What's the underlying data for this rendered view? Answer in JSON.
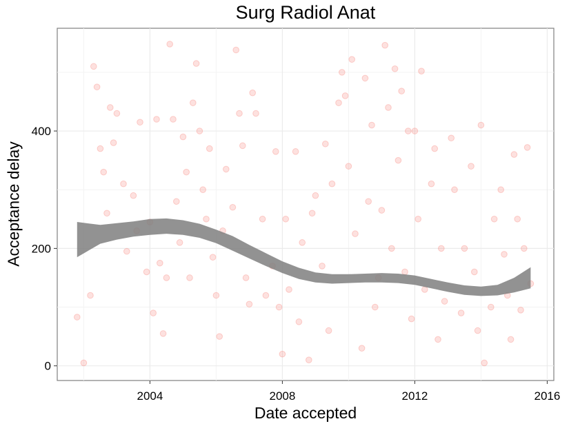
{
  "chart_data": {
    "type": "scatter",
    "title": "Surg Radiol Anat",
    "xlabel": "Date accepted",
    "ylabel": "Acceptance delay",
    "x_unit": "year",
    "xlim": [
      2001.2,
      2016.2
    ],
    "ylim": [
      -25,
      575
    ],
    "x_ticks": [
      2004,
      2008,
      2012,
      2016
    ],
    "x_tick_labels": [
      "2004",
      "2008",
      "2012",
      "2016"
    ],
    "y_ticks": [
      0,
      200,
      400
    ],
    "y_tick_labels": [
      "0",
      "200",
      "400"
    ],
    "grid": true,
    "legend": "none",
    "point_color": "#F8766D",
    "point_opacity": 0.22,
    "smooth_color": "#7f7f7f",
    "points": [
      [
        2001.8,
        83
      ],
      [
        2002.0,
        5
      ],
      [
        2002.2,
        120
      ],
      [
        2002.3,
        510
      ],
      [
        2002.4,
        475
      ],
      [
        2002.5,
        370
      ],
      [
        2002.6,
        330
      ],
      [
        2002.7,
        260
      ],
      [
        2002.8,
        440
      ],
      [
        2002.9,
        380
      ],
      [
        2003.0,
        430
      ],
      [
        2003.2,
        310
      ],
      [
        2003.3,
        195
      ],
      [
        2003.5,
        290
      ],
      [
        2003.6,
        230
      ],
      [
        2003.7,
        415
      ],
      [
        2003.9,
        160
      ],
      [
        2004.0,
        245
      ],
      [
        2004.1,
        90
      ],
      [
        2004.2,
        420
      ],
      [
        2004.3,
        175
      ],
      [
        2004.4,
        55
      ],
      [
        2004.5,
        150
      ],
      [
        2004.6,
        548
      ],
      [
        2004.7,
        420
      ],
      [
        2004.8,
        280
      ],
      [
        2004.9,
        210
      ],
      [
        2005.0,
        390
      ],
      [
        2005.1,
        330
      ],
      [
        2005.2,
        150
      ],
      [
        2005.3,
        448
      ],
      [
        2005.4,
        515
      ],
      [
        2005.5,
        400
      ],
      [
        2005.6,
        300
      ],
      [
        2005.7,
        250
      ],
      [
        2005.8,
        370
      ],
      [
        2005.9,
        185
      ],
      [
        2006.0,
        120
      ],
      [
        2006.1,
        50
      ],
      [
        2006.2,
        230
      ],
      [
        2006.3,
        335
      ],
      [
        2006.5,
        270
      ],
      [
        2006.6,
        538
      ],
      [
        2006.7,
        430
      ],
      [
        2006.8,
        375
      ],
      [
        2006.9,
        150
      ],
      [
        2007.0,
        105
      ],
      [
        2007.1,
        465
      ],
      [
        2007.2,
        430
      ],
      [
        2007.4,
        250
      ],
      [
        2007.5,
        120
      ],
      [
        2007.7,
        170
      ],
      [
        2007.8,
        365
      ],
      [
        2007.9,
        100
      ],
      [
        2008.0,
        20
      ],
      [
        2008.1,
        250
      ],
      [
        2008.2,
        130
      ],
      [
        2008.4,
        365
      ],
      [
        2008.5,
        75
      ],
      [
        2008.6,
        210
      ],
      [
        2008.8,
        10
      ],
      [
        2008.9,
        260
      ],
      [
        2009.0,
        290
      ],
      [
        2009.2,
        170
      ],
      [
        2009.3,
        378
      ],
      [
        2009.4,
        60
      ],
      [
        2009.5,
        310
      ],
      [
        2009.7,
        448
      ],
      [
        2009.8,
        500
      ],
      [
        2009.9,
        460
      ],
      [
        2010.0,
        340
      ],
      [
        2010.1,
        522
      ],
      [
        2010.2,
        225
      ],
      [
        2010.4,
        30
      ],
      [
        2010.5,
        490
      ],
      [
        2010.6,
        280
      ],
      [
        2010.7,
        410
      ],
      [
        2010.8,
        100
      ],
      [
        2010.9,
        150
      ],
      [
        2011.0,
        265
      ],
      [
        2011.1,
        546
      ],
      [
        2011.2,
        440
      ],
      [
        2011.3,
        200
      ],
      [
        2011.4,
        506
      ],
      [
        2011.5,
        350
      ],
      [
        2011.6,
        468
      ],
      [
        2011.7,
        160
      ],
      [
        2011.8,
        400
      ],
      [
        2011.9,
        80
      ],
      [
        2012.0,
        400
      ],
      [
        2012.1,
        250
      ],
      [
        2012.2,
        502
      ],
      [
        2012.3,
        130
      ],
      [
        2012.5,
        310
      ],
      [
        2012.6,
        370
      ],
      [
        2012.7,
        45
      ],
      [
        2012.8,
        200
      ],
      [
        2012.9,
        110
      ],
      [
        2013.1,
        388
      ],
      [
        2013.2,
        300
      ],
      [
        2013.4,
        90
      ],
      [
        2013.5,
        200
      ],
      [
        2013.7,
        340
      ],
      [
        2013.8,
        160
      ],
      [
        2013.9,
        60
      ],
      [
        2014.0,
        410
      ],
      [
        2014.1,
        5
      ],
      [
        2014.3,
        100
      ],
      [
        2014.4,
        250
      ],
      [
        2014.6,
        300
      ],
      [
        2014.7,
        190
      ],
      [
        2014.8,
        120
      ],
      [
        2014.9,
        45
      ],
      [
        2015.0,
        360
      ],
      [
        2015.1,
        250
      ],
      [
        2015.2,
        95
      ],
      [
        2015.3,
        200
      ],
      [
        2015.4,
        372
      ],
      [
        2015.5,
        140
      ]
    ],
    "smooth_upper": [
      [
        2001.8,
        245
      ],
      [
        2002.5,
        240
      ],
      [
        2003.0,
        243
      ],
      [
        2003.5,
        246
      ],
      [
        2004.0,
        250
      ],
      [
        2004.5,
        251
      ],
      [
        2005.0,
        248
      ],
      [
        2005.5,
        242
      ],
      [
        2006.0,
        232
      ],
      [
        2006.5,
        221
      ],
      [
        2007.0,
        206
      ],
      [
        2007.5,
        192
      ],
      [
        2008.0,
        178
      ],
      [
        2008.5,
        167
      ],
      [
        2009.0,
        159
      ],
      [
        2009.5,
        156
      ],
      [
        2010.0,
        156
      ],
      [
        2010.5,
        157
      ],
      [
        2011.0,
        158
      ],
      [
        2011.5,
        157
      ],
      [
        2012.0,
        154
      ],
      [
        2012.5,
        148
      ],
      [
        2013.0,
        142
      ],
      [
        2013.5,
        137
      ],
      [
        2014.0,
        135
      ],
      [
        2014.5,
        138
      ],
      [
        2015.0,
        150
      ],
      [
        2015.5,
        168
      ]
    ],
    "smooth_lower": [
      [
        2001.8,
        185
      ],
      [
        2002.5,
        208
      ],
      [
        2003.0,
        215
      ],
      [
        2003.5,
        220
      ],
      [
        2004.0,
        223
      ],
      [
        2004.5,
        225
      ],
      [
        2005.0,
        223
      ],
      [
        2005.5,
        218
      ],
      [
        2006.0,
        209
      ],
      [
        2006.5,
        196
      ],
      [
        2007.0,
        183
      ],
      [
        2007.5,
        170
      ],
      [
        2008.0,
        158
      ],
      [
        2008.5,
        148
      ],
      [
        2009.0,
        142
      ],
      [
        2009.5,
        140
      ],
      [
        2010.0,
        141
      ],
      [
        2010.5,
        142
      ],
      [
        2011.0,
        142
      ],
      [
        2011.5,
        141
      ],
      [
        2012.0,
        138
      ],
      [
        2012.5,
        132
      ],
      [
        2013.0,
        126
      ],
      [
        2013.5,
        121
      ],
      [
        2014.0,
        119
      ],
      [
        2014.5,
        120
      ],
      [
        2015.0,
        125
      ],
      [
        2015.5,
        132
      ]
    ]
  }
}
